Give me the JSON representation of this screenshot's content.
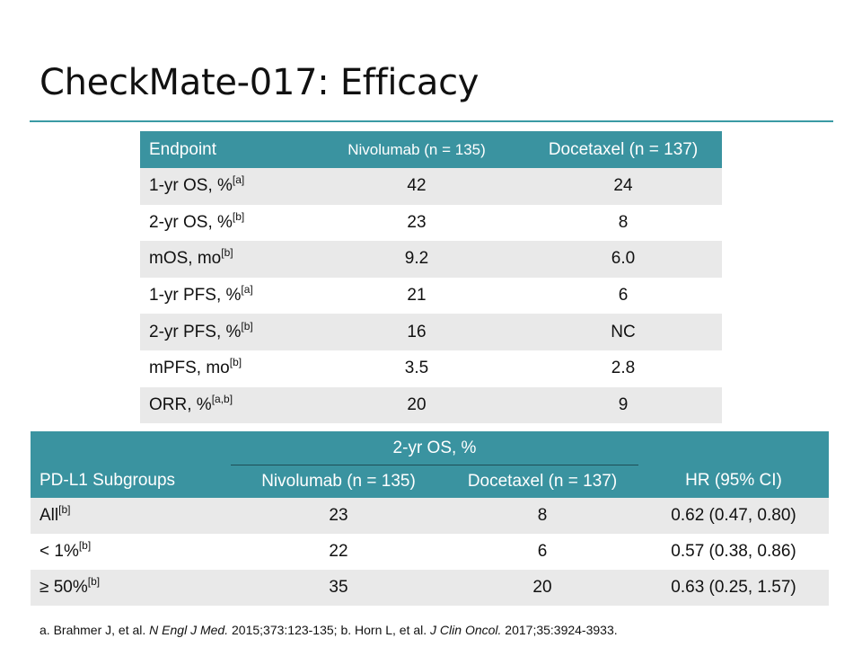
{
  "title": "CheckMate-017: Efficacy",
  "table1": {
    "headers": [
      "Endpoint",
      "Nivolumab (n = 135)",
      "Docetaxel  (n = 137)"
    ],
    "rows": [
      {
        "label": "1-yr OS, %",
        "ref": "[a]",
        "nivolumab": "42",
        "docetaxel": "24"
      },
      {
        "label": "2-yr OS, %",
        "ref": "[b]",
        "nivolumab": "23",
        "docetaxel": "8"
      },
      {
        "label": "mOS, mo",
        "ref": "[b]",
        "nivolumab": "9.2",
        "docetaxel": "6.0"
      },
      {
        "label": "1-yr PFS, %",
        "ref": "[a]",
        "nivolumab": "21",
        "docetaxel": "6"
      },
      {
        "label": "2-yr PFS, %",
        "ref": "[b]",
        "nivolumab": "16",
        "docetaxel": "NC"
      },
      {
        "label": "mPFS, mo",
        "ref": "[b]",
        "nivolumab": "3.5",
        "docetaxel": "2.8"
      },
      {
        "label": "ORR, %",
        "ref": "[a,b]",
        "nivolumab": "20",
        "docetaxel": "9"
      }
    ]
  },
  "table2": {
    "group_header": "2-yr OS, %",
    "headers": [
      "PD-L1 Subgroups",
      "Nivolumab (n = 135)",
      "Docetaxel  (n = 137)",
      "HR (95% CI)"
    ],
    "rows": [
      {
        "label": "All",
        "ref": "[b]",
        "nivolumab": "23",
        "docetaxel": "8",
        "hr": "0.62 (0.47, 0.80)"
      },
      {
        "label": "< 1%",
        "ref": "[b]",
        "nivolumab": "22",
        "docetaxel": "6",
        "hr": "0.57 (0.38, 0.86)"
      },
      {
        "label": "≥ 50%",
        "ref": "[b]",
        "nivolumab": "35",
        "docetaxel": "20",
        "hr": "0.63 (0.25, 1.57)"
      }
    ]
  },
  "footnote": {
    "a_prefix": "a. Brahmer J, et al. ",
    "a_journal": "N Engl J Med.",
    "a_suffix": " 2015;373:123-135; b. Horn L, et al. ",
    "b_journal": "J Clin Oncol.",
    "b_suffix": " 2017;35:3924-3933."
  },
  "colors": {
    "header_teal": "#3a93a0",
    "rule_teal": "#3a9aa4",
    "alt_row": "#e9e9e9"
  }
}
